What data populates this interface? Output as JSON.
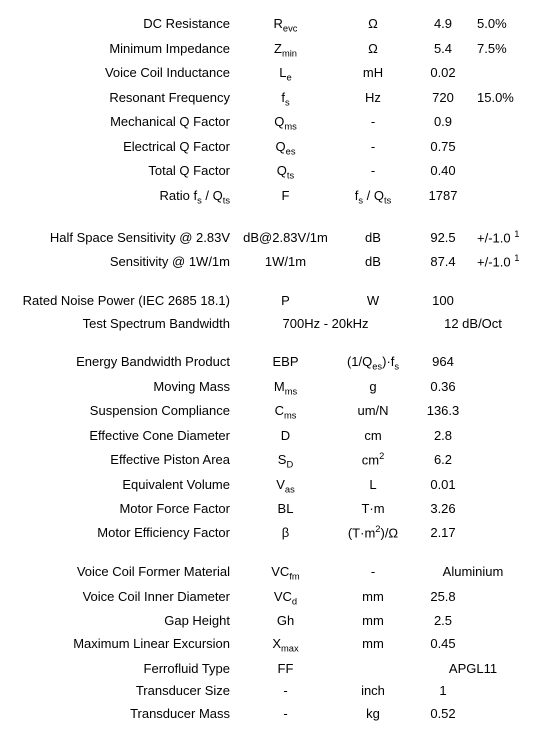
{
  "rows": [
    {
      "label": "DC Resistance",
      "sym": "R<span class='sub'>evc</span>",
      "unit": "Ω",
      "val": "4.9",
      "tol": "5.0%"
    },
    {
      "label": "Minimum Impedance",
      "sym": "Z<span class='sub'>min</span>",
      "unit": "Ω",
      "val": "5.4",
      "tol": "7.5%"
    },
    {
      "label": "Voice Coil Inductance",
      "sym": "L<span class='sub'>e</span>",
      "unit": "mH",
      "val": "0.02",
      "tol": ""
    },
    {
      "label": "Resonant Frequency",
      "sym": "f<span class='sub'>s</span>",
      "unit": "Hz",
      "val": "720",
      "tol": "15.0%"
    },
    {
      "label": "Mechanical Q Factor",
      "sym": "Q<span class='sub'>ms</span>",
      "unit": "-",
      "val": "0.9",
      "tol": ""
    },
    {
      "label": "Electrical Q Factor",
      "sym": "Q<span class='sub'>es</span>",
      "unit": "-",
      "val": "0.75",
      "tol": ""
    },
    {
      "label": "Total Q Factor",
      "sym": "Q<span class='sub'>ts</span>",
      "unit": "-",
      "val": "0.40",
      "tol": ""
    },
    {
      "label": "Ratio f<span class='sub'>s</span> / Q<span class='sub'>ts</span>",
      "sym": "F",
      "unit": "f<span class='sub'>s</span> / Q<span class='sub'>ts</span>",
      "val": "1787",
      "tol": ""
    },
    {
      "spacer": true
    },
    {
      "label": "Half Space Sensitivity @ 2.83V",
      "sym": "dB@2.83V/1m",
      "unit": "dB",
      "val": "92.5",
      "tol": "+/-1.0 <span class='sup'>1</span>"
    },
    {
      "label": "Sensitivity @ 1W/1m",
      "sym": "1W/1m",
      "unit": "dB",
      "val": "87.4",
      "tol": "+/-1.0 <span class='sup'>1</span>"
    },
    {
      "spacer": true
    },
    {
      "label": "Rated Noise Power (IEC 2685 18.1)",
      "sym": "P",
      "unit": "W",
      "val": "100",
      "tol": ""
    },
    {
      "label": "Test Spectrum Bandwidth",
      "sym": "700Hz - 20kHz",
      "unit": "",
      "val": "12 dB/Oct",
      "tol": "",
      "wideSym": true,
      "wideVal": true
    },
    {
      "spacer": true
    },
    {
      "label": "Energy Bandwidth Product",
      "sym": "EBP",
      "unit": "(1/Q<span class='sub'>es</span>)·f<span class='sub'>s</span>",
      "val": "964",
      "tol": ""
    },
    {
      "label": "Moving Mass",
      "sym": "M<span class='sub'>ms</span>",
      "unit": "g",
      "val": "0.36",
      "tol": ""
    },
    {
      "label": "Suspension Compliance",
      "sym": "C<span class='sub'>ms</span>",
      "unit": "um/N",
      "val": "136.3",
      "tol": ""
    },
    {
      "label": "Effective Cone Diameter",
      "sym": "D",
      "unit": "cm",
      "val": "2.8",
      "tol": ""
    },
    {
      "label": "Effective Piston Area",
      "sym": "S<span class='sub'>D</span>",
      "unit": "cm<span class='sup'>2</span>",
      "val": "6.2",
      "tol": ""
    },
    {
      "label": "Equivalent Volume",
      "sym": "V<span class='sub'>as</span>",
      "unit": "L",
      "val": "0.01",
      "tol": ""
    },
    {
      "label": "Motor Force Factor",
      "sym": "BL",
      "unit": "T·m",
      "val": "3.26",
      "tol": ""
    },
    {
      "label": "Motor Efficiency Factor",
      "sym": "β",
      "unit": "(T·m<span class='sup'>2</span>)/Ω",
      "val": "2.17",
      "tol": ""
    },
    {
      "spacer": true
    },
    {
      "label": "Voice Coil Former Material",
      "sym": "VC<span class='sub'>fm</span>",
      "unit": "-",
      "val": "Aluminium",
      "tol": "",
      "wideVal": true
    },
    {
      "label": "Voice Coil Inner Diameter",
      "sym": "VC<span class='sub'>d</span>",
      "unit": "mm",
      "val": "25.8",
      "tol": ""
    },
    {
      "label": "Gap Height",
      "sym": "Gh",
      "unit": "mm",
      "val": "2.5",
      "tol": ""
    },
    {
      "label": "Maximum Linear Excursion",
      "sym": "X<span class='sub'>max</span>",
      "unit": "mm",
      "val": "0.45",
      "tol": ""
    },
    {
      "label": "Ferrofluid Type",
      "sym": "FF",
      "unit": "",
      "val": "APGL11",
      "tol": "",
      "wideVal": true
    },
    {
      "label": "Transducer Size",
      "sym": "-",
      "unit": "inch",
      "val": "1",
      "tol": ""
    },
    {
      "label": "Transducer Mass",
      "sym": "-",
      "unit": "kg",
      "val": "0.52",
      "tol": ""
    }
  ]
}
